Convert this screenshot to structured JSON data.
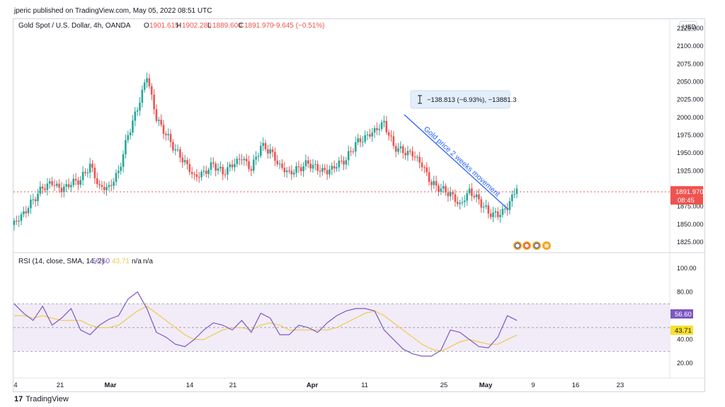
{
  "header": {
    "publisher_line": "jperic published on TradingView.com, May 05, 2022 08:51 UTC"
  },
  "footer": {
    "brand": "TradingView",
    "logo_glyph": "17"
  },
  "price_pane": {
    "symbol": "Gold Spot / U.S. Dollar, 4h, OANDA",
    "ohlc": {
      "O_label": "O",
      "O": "1901.615",
      "H_label": "H",
      "H": "1902.280",
      "L_label": "L",
      "L": "1889.600",
      "C_label": "C",
      "C": "1891.970",
      "change": "−9.645 (−0.51%)"
    },
    "currency": "USD",
    "y_ticks": [
      "2125.000",
      "2100.000",
      "2075.000",
      "2050.000",
      "2025.000",
      "2000.000",
      "1975.000",
      "1950.000",
      "1925.000",
      "1900.000",
      "1875.000",
      "1850.000",
      "1825.000"
    ],
    "last_price_label": "1891.970",
    "countdown_label": "08:45",
    "annotation_text": "Gold price 2 weeks movement",
    "measure_label": "−138.813 (−6.93%), −13881.3",
    "measure_icon": "range-measure-icon",
    "colors": {
      "up": "#26a69a",
      "down": "#ef5350",
      "trendline": "#2962ff",
      "badge": "#ef5350"
    }
  },
  "rsi_pane": {
    "title": "RSI (14, close, SMA, 14, 2)",
    "rsi_value_label": "56.60",
    "sma_value_label": "43.71",
    "na_1": "n/a",
    "na_2": "n/a",
    "y_ticks": [
      "100.00",
      "80.00",
      "60.00",
      "40.00",
      "20.00"
    ],
    "band_upper": 70,
    "band_lower": 30,
    "colors": {
      "rsi": "#7e57c2",
      "sma": "#f2c94c",
      "band_fill": "#ede7f6"
    }
  },
  "x_axis": {
    "labels": [
      "4",
      "21",
      "Mar",
      "14",
      "21",
      "Apr",
      "11",
      "25",
      "May",
      "9",
      "16",
      "23"
    ]
  },
  "chart_data": {
    "type": "line",
    "title": "Gold Spot / U.S. Dollar, 4h, OANDA",
    "x_labels": [
      "4",
      "21",
      "Mar",
      "14",
      "21",
      "Apr",
      "11",
      "25",
      "May",
      "9",
      "16",
      "23"
    ],
    "price_close_approx": [
      1855,
      1868,
      1885,
      1900,
      1905,
      1895,
      1905,
      1912,
      1935,
      1905,
      1905,
      1925,
      1975,
      2010,
      2055,
      1995,
      1975,
      1955,
      1940,
      1920,
      1925,
      1935,
      1920,
      1930,
      1940,
      1925,
      1960,
      1955,
      1935,
      1925,
      1930,
      1935,
      1925,
      1920,
      1930,
      1940,
      1965,
      1975,
      1985,
      1995,
      1960,
      1950,
      1945,
      1930,
      1905,
      1900,
      1895,
      1880,
      1900,
      1885,
      1865,
      1860,
      1870,
      1900
    ],
    "price_ylim": [
      1815,
      2135
    ],
    "rsi_approx": [
      70,
      62,
      56,
      68,
      52,
      58,
      66,
      48,
      44,
      52,
      57,
      60,
      74,
      80,
      66,
      46,
      42,
      36,
      34,
      40,
      48,
      54,
      52,
      48,
      56,
      46,
      62,
      58,
      44,
      44,
      52,
      50,
      46,
      54,
      60,
      64,
      66,
      66,
      64,
      48,
      40,
      32,
      28,
      26,
      26,
      31,
      48,
      46,
      40,
      34,
      33,
      42,
      60,
      56
    ],
    "rsi_sma_approx": [
      60,
      60,
      58,
      60,
      58,
      56,
      56,
      56,
      52,
      50,
      50,
      52,
      58,
      64,
      68,
      62,
      56,
      50,
      44,
      40,
      40,
      44,
      48,
      50,
      50,
      48,
      52,
      54,
      52,
      48,
      48,
      48,
      48,
      48,
      50,
      54,
      58,
      62,
      64,
      60,
      54,
      48,
      42,
      36,
      32,
      30,
      34,
      38,
      40,
      38,
      36,
      36,
      40,
      43.71
    ],
    "rsi_ylim": [
      10,
      110
    ],
    "measure_change": -138.813
  }
}
